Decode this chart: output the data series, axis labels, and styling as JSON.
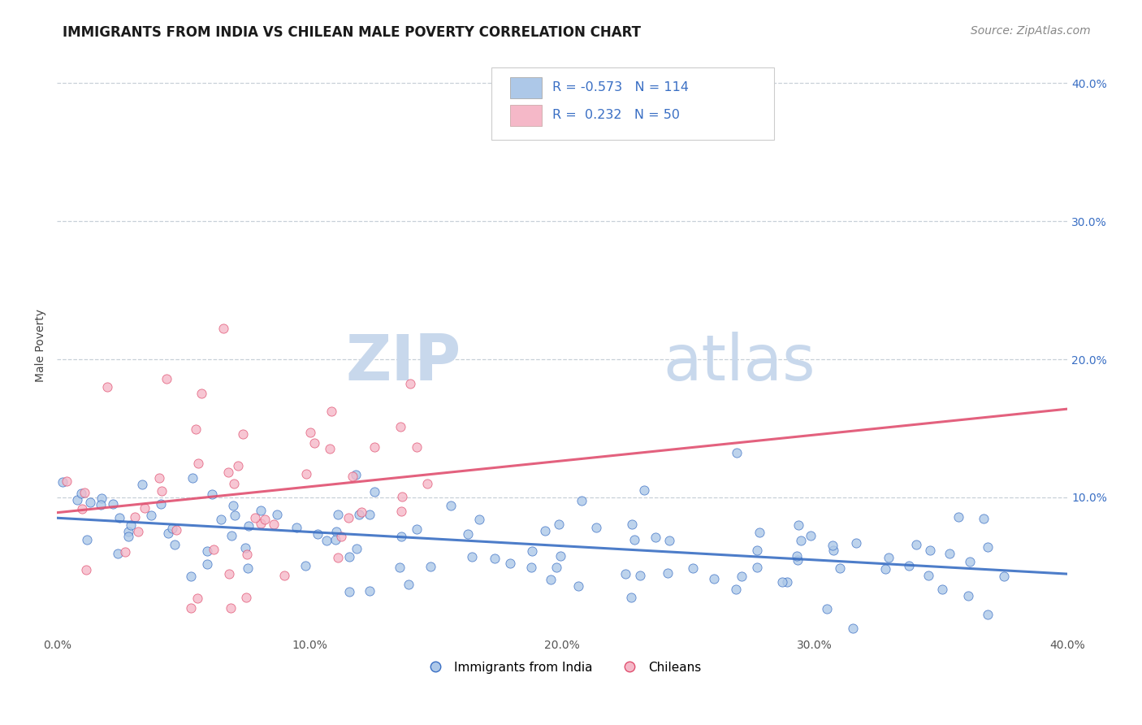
{
  "title": "IMMIGRANTS FROM INDIA VS CHILEAN MALE POVERTY CORRELATION CHART",
  "source": "Source: ZipAtlas.com",
  "ylabel": "Male Poverty",
  "xlim": [
    0.0,
    0.4
  ],
  "ylim": [
    0.0,
    0.42
  ],
  "legend_labels": [
    "Immigrants from India",
    "Chileans"
  ],
  "R_india": -0.573,
  "N_india": 114,
  "R_chile": 0.232,
  "N_chile": 50,
  "color_india": "#adc8e8",
  "color_chile": "#f5b8c8",
  "line_color_india": "#3a6fc4",
  "line_color_chile": "#e05070",
  "watermark_zip": "ZIP",
  "watermark_atlas": "atlas",
  "watermark_color": "#c8d8ec",
  "background_color": "#ffffff",
  "grid_color": "#c8d0d8",
  "title_fontsize": 12,
  "source_fontsize": 10
}
